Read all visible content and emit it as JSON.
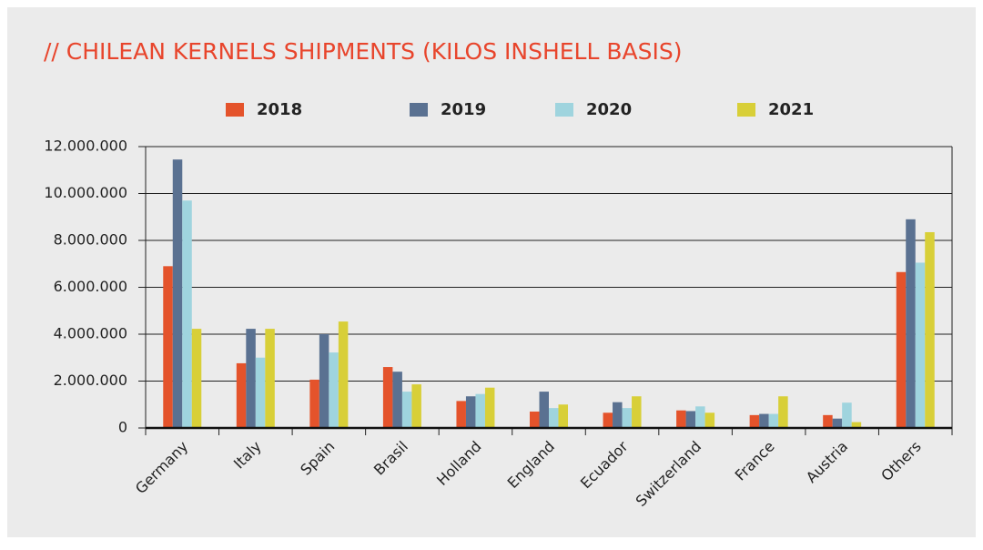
{
  "chart_data": {
    "type": "bar",
    "title": "// CHILEAN KERNELS SHIPMENTS (KILOS INSHELL BASIS)",
    "categories": [
      "Germany",
      "Italy",
      "Spain",
      "Brasil",
      "Holland",
      "England",
      "Ecuador",
      "Switzerland",
      "France",
      "Austria",
      "Others"
    ],
    "series": [
      {
        "name": "2018",
        "color": "#e4532b",
        "values": [
          6900000,
          2760000,
          2060000,
          2600000,
          1150000,
          700000,
          650000,
          750000,
          550000,
          550000,
          6650000
        ]
      },
      {
        "name": "2019",
        "color": "#5a7191",
        "values": [
          11450000,
          4230000,
          4000000,
          2400000,
          1350000,
          1550000,
          1100000,
          720000,
          600000,
          400000,
          8900000
        ]
      },
      {
        "name": "2020",
        "color": "#9fd4de",
        "values": [
          9700000,
          3000000,
          3220000,
          1550000,
          1450000,
          850000,
          850000,
          920000,
          600000,
          1080000,
          7050000
        ]
      },
      {
        "name": "2021",
        "color": "#d8cf38",
        "values": [
          4230000,
          4230000,
          4540000,
          1860000,
          1720000,
          1000000,
          1350000,
          650000,
          1350000,
          250000,
          8350000
        ]
      }
    ],
    "ylim": [
      0,
      12000000
    ],
    "yticks": [
      0,
      {
        "value": 2000000,
        "label": "2.000.000"
      },
      {
        "value": 4000000,
        "label": "4.000.000"
      },
      {
        "value": 6000000,
        "label": "6.000.000"
      },
      {
        "value": 8000000,
        "label": "8.000.000"
      },
      {
        "value": 10000000,
        "label": "10.000.000"
      },
      {
        "value": 12000000,
        "label": "12.000.000"
      }
    ],
    "grid": true,
    "legend": "top"
  }
}
